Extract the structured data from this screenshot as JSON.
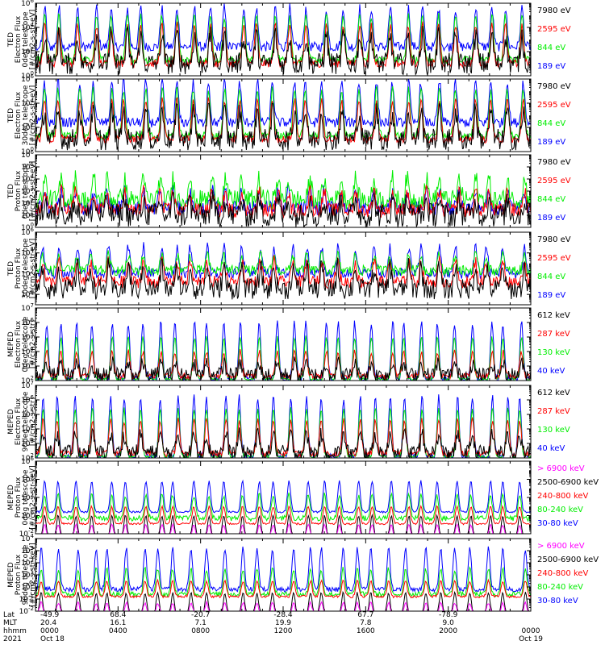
{
  "chart_data": [
    {
      "type": "line",
      "ylabel": [
        "TED",
        "Electron Flux",
        "0deg telescope",
        "[#/cm2-s-str-eV]"
      ],
      "ylim_log10": [
        0,
        6
      ],
      "y_ticks": [
        {
          "exp": 0,
          "label": "10",
          "sup": "0"
        },
        {
          "exp": 2,
          "label": "10",
          "sup": "2"
        },
        {
          "exp": 4,
          "label": "10",
          "sup": "4"
        },
        {
          "exp": 6,
          "label": "10",
          "sup": "6"
        }
      ],
      "series": [
        {
          "name": "7980 eV",
          "color": "#000000",
          "base_log10": 1.0,
          "peak_log10": 3.3,
          "noise": 0.9
        },
        {
          "name": "2595 eV",
          "color": "#ff0000",
          "base_log10": 1.0,
          "peak_log10": 4.2,
          "noise": 0.3
        },
        {
          "name": "844 eV",
          "color": "#00ee00",
          "base_log10": 1.3,
          "peak_log10": 5.0,
          "noise": 0.3
        },
        {
          "name": "189 eV",
          "color": "#0000ff",
          "base_log10": 2.4,
          "peak_log10": 5.6,
          "noise": 0.4
        }
      ]
    },
    {
      "type": "line",
      "ylabel": [
        "TED",
        "Electron Flux",
        "30deg telescope",
        "[#/cm2-s-str-eV]"
      ],
      "ylim_log10": [
        0,
        6
      ],
      "y_ticks": [
        {
          "exp": 0,
          "label": "10",
          "sup": "0"
        },
        {
          "exp": 2,
          "label": "10",
          "sup": "2"
        },
        {
          "exp": 4,
          "label": "10",
          "sup": "4"
        },
        {
          "exp": 6,
          "label": "10",
          "sup": "6"
        }
      ],
      "series": [
        {
          "name": "7980 eV",
          "color": "#000000",
          "base_log10": 1.0,
          "peak_log10": 3.3,
          "noise": 0.9
        },
        {
          "name": "2595 eV",
          "color": "#ff0000",
          "base_log10": 1.0,
          "peak_log10": 4.3,
          "noise": 0.3
        },
        {
          "name": "844 eV",
          "color": "#00ee00",
          "base_log10": 1.3,
          "peak_log10": 5.2,
          "noise": 0.3
        },
        {
          "name": "189 eV",
          "color": "#0000ff",
          "base_log10": 2.4,
          "peak_log10": 5.8,
          "noise": 0.4
        }
      ]
    },
    {
      "type": "line",
      "ylabel": [
        "TED",
        "Proton Flux",
        "0deg telescope",
        "[#/cm2-s-str-eV]"
      ],
      "ylim_log10": [
        0,
        6
      ],
      "y_ticks": [
        {
          "exp": 0,
          "label": "10",
          "sup": "0"
        },
        {
          "exp": 1,
          "label": "10",
          "sup": "1"
        },
        {
          "exp": 2,
          "label": "10",
          "sup": "2"
        },
        {
          "exp": 3,
          "label": "10",
          "sup": "3"
        },
        {
          "exp": 4,
          "label": "10",
          "sup": "4"
        },
        {
          "exp": 5,
          "label": "10",
          "sup": "5"
        },
        {
          "exp": 6,
          "label": "10",
          "sup": "6"
        }
      ],
      "series": [
        {
          "name": "7980 eV",
          "color": "#000000",
          "base_log10": 1.0,
          "peak_log10": 2.2,
          "noise": 1.0
        },
        {
          "name": "2595 eV",
          "color": "#ff0000",
          "base_log10": 1.4,
          "peak_log10": 3.0,
          "noise": 0.6
        },
        {
          "name": "844 eV",
          "color": "#00ee00",
          "base_log10": 2.3,
          "peak_log10": 4.0,
          "noise": 0.8
        },
        {
          "name": "189 eV",
          "color": "#0000ff",
          "base_log10": 1.6,
          "peak_log10": 3.0,
          "noise": 0.6
        }
      ]
    },
    {
      "type": "line",
      "ylabel": [
        "TED",
        "Proton Flux",
        "30deg telescope",
        "[#/cm2-s-str-eV]"
      ],
      "ylim_log10": [
        -1,
        6
      ],
      "y_ticks": [
        {
          "exp": 0,
          "label": "10",
          "sup": "0"
        },
        {
          "exp": 2,
          "label": "10",
          "sup": "2"
        },
        {
          "exp": 4,
          "label": "10",
          "sup": "4"
        },
        {
          "exp": 6,
          "label": "10",
          "sup": "6"
        }
      ],
      "series": [
        {
          "name": "7980 eV",
          "color": "#000000",
          "base_log10": 0.5,
          "peak_log10": 2.6,
          "noise": 1.0
        },
        {
          "name": "2595 eV",
          "color": "#ff0000",
          "base_log10": 1.2,
          "peak_log10": 3.2,
          "noise": 0.6
        },
        {
          "name": "844 eV",
          "color": "#00ee00",
          "base_log10": 2.3,
          "peak_log10": 3.8,
          "noise": 0.5
        },
        {
          "name": "189 eV",
          "color": "#0000ff",
          "base_log10": 2.0,
          "peak_log10": 4.6,
          "noise": 0.5
        }
      ]
    },
    {
      "type": "line",
      "ylabel": [
        "MEPED",
        "Electron Flux",
        "0deg telescope",
        "[#/cm2-s-str]"
      ],
      "ylim_log10": [
        2,
        7
      ],
      "y_ticks": [
        {
          "exp": 2,
          "label": "10",
          "sup": "2"
        },
        {
          "exp": 3,
          "label": "10",
          "sup": "3"
        },
        {
          "exp": 4,
          "label": "10",
          "sup": "4"
        },
        {
          "exp": 5,
          "label": "10",
          "sup": "5"
        },
        {
          "exp": 6,
          "label": "10",
          "sup": "6"
        },
        {
          "exp": 7,
          "label": "10",
          "sup": "7"
        }
      ],
      "series": [
        {
          "name": "612 keV",
          "color": "#000000",
          "base_log10": 2.4,
          "peak_log10": 3.2,
          "noise": 0.5
        },
        {
          "name": "287 keV",
          "color": "#ff0000",
          "base_log10": 2.3,
          "peak_log10": 4.0,
          "noise": 0.2
        },
        {
          "name": "130 keV",
          "color": "#00ee00",
          "base_log10": 2.1,
          "peak_log10": 5.0,
          "noise": 0.1
        },
        {
          "name": "40 keV",
          "color": "#0000ff",
          "base_log10": 2.1,
          "peak_log10": 6.0,
          "noise": 0.2
        }
      ]
    },
    {
      "type": "line",
      "ylabel": [
        "MEPED",
        "Electron Flux",
        "90deg telescope",
        "[#/cm2-s-str]"
      ],
      "ylim_log10": [
        2,
        7
      ],
      "y_ticks": [
        {
          "exp": 2,
          "label": "10",
          "sup": "2"
        },
        {
          "exp": 3,
          "label": "10",
          "sup": "3"
        },
        {
          "exp": 4,
          "label": "10",
          "sup": "4"
        },
        {
          "exp": 5,
          "label": "10",
          "sup": "5"
        },
        {
          "exp": 6,
          "label": "10",
          "sup": "6"
        },
        {
          "exp": 7,
          "label": "10",
          "sup": "7"
        }
      ],
      "series": [
        {
          "name": "612 keV",
          "color": "#000000",
          "base_log10": 2.4,
          "peak_log10": 3.6,
          "noise": 0.5
        },
        {
          "name": "287 keV",
          "color": "#ff0000",
          "base_log10": 2.3,
          "peak_log10": 4.6,
          "noise": 0.2
        },
        {
          "name": "130 keV",
          "color": "#00ee00",
          "base_log10": 2.1,
          "peak_log10": 5.4,
          "noise": 0.1
        },
        {
          "name": "40 keV",
          "color": "#0000ff",
          "base_log10": 2.1,
          "peak_log10": 6.2,
          "noise": 0.2
        }
      ]
    },
    {
      "type": "line",
      "ylabel": [
        "MEPED",
        "Proton Flux",
        "0deg telescope",
        "[#/cm2-s-str-keV]"
      ],
      "ylim_log10": [
        -2,
        6
      ],
      "y_ticks": [
        {
          "exp": -2,
          "label": "10",
          "sup": "-2"
        },
        {
          "exp": 0,
          "label": "10",
          "sup": "0"
        },
        {
          "exp": 2,
          "label": "10",
          "sup": "2"
        },
        {
          "exp": 4,
          "label": "10",
          "sup": "4"
        },
        {
          "exp": 6,
          "label": "10",
          "sup": "6"
        }
      ],
      "series": [
        {
          "name": "> 6900 keV",
          "color": "#ff00ff",
          "base_log10": -2.5,
          "peak_log10": -1.0,
          "noise": 0.1
        },
        {
          "name": "2500-6900 keV",
          "color": "#000000",
          "base_log10": -2.5,
          "peak_log10": 0.0,
          "noise": 0.1
        },
        {
          "name": "240-800 keV",
          "color": "#ff0000",
          "base_log10": -0.9,
          "peak_log10": 1.0,
          "noise": 0.1
        },
        {
          "name": "80-240 keV",
          "color": "#00ee00",
          "base_log10": -0.3,
          "peak_log10": 2.3,
          "noise": 0.3
        },
        {
          "name": "30-80 keV",
          "color": "#0000ff",
          "base_log10": 0.4,
          "peak_log10": 3.8,
          "noise": 0.1
        }
      ]
    },
    {
      "type": "line",
      "ylabel": [
        "MEPED",
        "Proton Flux",
        "90deg telescope",
        "[#/cm2-s-str-keV]"
      ],
      "ylim_log10": [
        -2,
        4
      ],
      "y_ticks": [
        {
          "exp": -2,
          "label": "10",
          "sup": "-2"
        },
        {
          "exp": -1,
          "label": "10",
          "sup": "-1"
        },
        {
          "exp": 0,
          "label": "10",
          "sup": "0"
        },
        {
          "exp": 1,
          "label": "10",
          "sup": "1"
        },
        {
          "exp": 2,
          "label": "10",
          "sup": "2"
        },
        {
          "exp": 3,
          "label": "10",
          "sup": "3"
        },
        {
          "exp": 4,
          "label": "10",
          "sup": "4"
        }
      ],
      "series": [
        {
          "name": "> 6900 keV",
          "color": "#ff00ff",
          "base_log10": -2.3,
          "peak_log10": -1.3,
          "noise": 0.1
        },
        {
          "name": "2500-6900 keV",
          "color": "#000000",
          "base_log10": -2.3,
          "peak_log10": -0.5,
          "noise": 0.1
        },
        {
          "name": "240-800 keV",
          "color": "#ff0000",
          "base_log10": -0.8,
          "peak_log10": 0.5,
          "noise": 0.1
        },
        {
          "name": "80-240 keV",
          "color": "#00ee00",
          "base_log10": -0.6,
          "peak_log10": 1.5,
          "noise": 0.2
        },
        {
          "name": "30-80 keV",
          "color": "#0000ff",
          "base_log10": -0.2,
          "peak_log10": 3.2,
          "noise": 0.2
        }
      ]
    }
  ],
  "x_axis": {
    "row_labels": [
      "Lat",
      "MLT",
      "hhmm",
      "2021"
    ],
    "columns": [
      {
        "lat": "-49.9",
        "mlt": "20.4",
        "hhmm": "0000",
        "date": "Oct 18"
      },
      {
        "lat": "68.4",
        "mlt": "16.1",
        "hhmm": "0400",
        "date": ""
      },
      {
        "lat": "-20.7",
        "mlt": "7.1",
        "hhmm": "0800",
        "date": ""
      },
      {
        "lat": "-28.4",
        "mlt": "19.9",
        "hhmm": "1200",
        "date": ""
      },
      {
        "lat": "67.7",
        "mlt": "7.8",
        "hhmm": "1600",
        "date": ""
      },
      {
        "lat": "-78.9",
        "mlt": "9.0",
        "hhmm": "2000",
        "date": ""
      },
      {
        "lat": "",
        "mlt": "",
        "hhmm": "0000",
        "date": "Oct 19"
      }
    ]
  }
}
